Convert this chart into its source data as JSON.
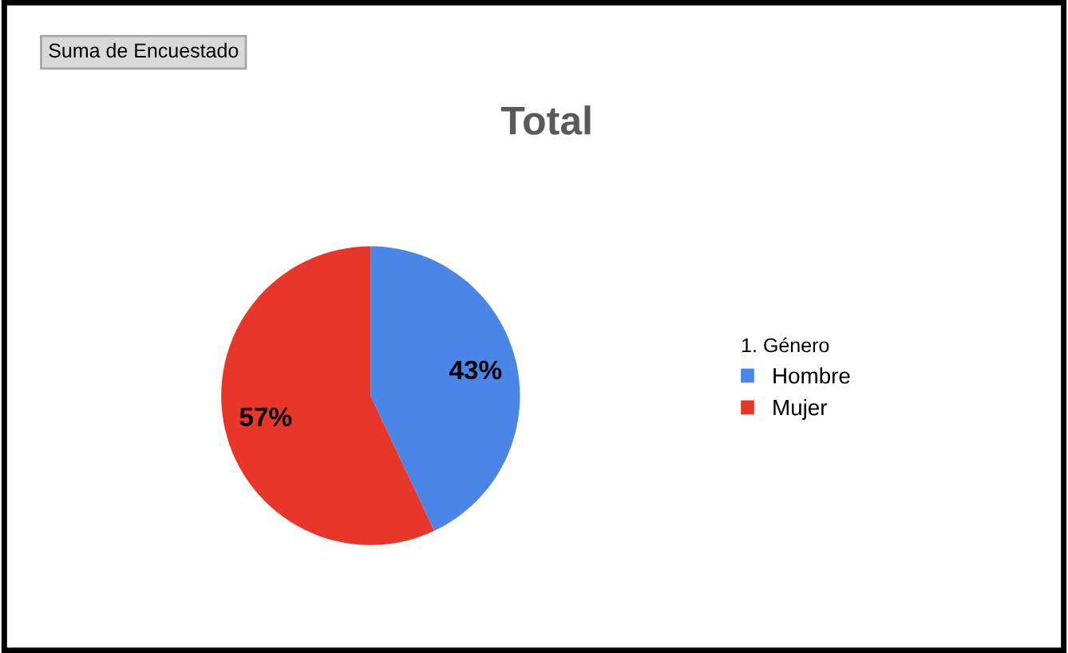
{
  "chart_data": {
    "type": "pie",
    "title": "Total",
    "annotations": [
      "Suma de Encuestado"
    ],
    "legend_title": "1. Género",
    "categories": [
      "Hombre",
      "Mujer"
    ],
    "values": [
      43,
      57
    ],
    "colors": [
      "#4a86e8",
      "#e8372a"
    ],
    "value_labels": [
      "43%",
      "57%"
    ],
    "legend": "right"
  }
}
